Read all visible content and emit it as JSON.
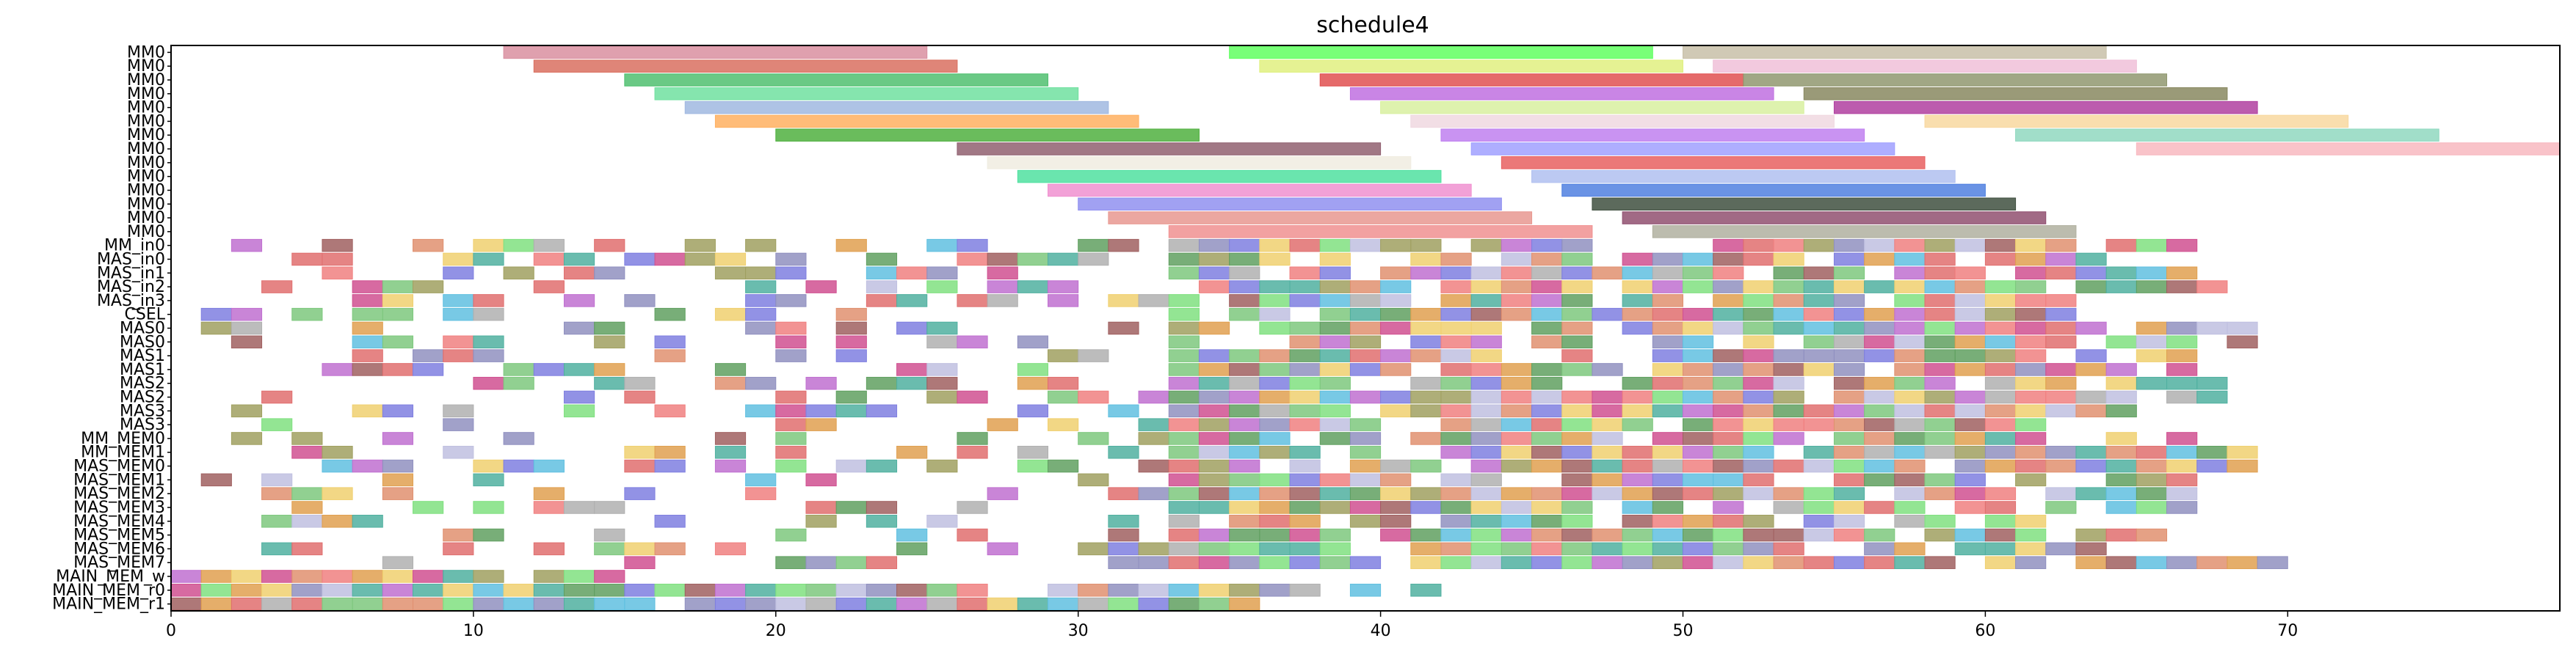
{
  "chart_data": {
    "type": "gantt",
    "title": "schedule4",
    "xlabel": "",
    "ylabel": "",
    "xlim": [
      0,
      79
    ],
    "xticks": [
      0,
      10,
      20,
      30,
      40,
      50,
      60,
      70
    ],
    "grid": false,
    "rows": [
      "MM0",
      "MM0",
      "MM0",
      "MM0",
      "MM0",
      "MM0",
      "MM0",
      "MM0",
      "MM0",
      "MM0",
      "MM0",
      "MM0",
      "MM0",
      "MM0",
      "MM_in0",
      "MAS_in0",
      "MAS_in1",
      "MAS_in2",
      "MAS_in3",
      "CSEL",
      "MAS0",
      "MAS0",
      "MAS1",
      "MAS1",
      "MAS2",
      "MAS2",
      "MAS3",
      "MAS3",
      "MM_MEM0",
      "MM_MEM1",
      "MAS_MEM0",
      "MAS_MEM1",
      "MAS_MEM2",
      "MAS_MEM3",
      "MAS_MEM4",
      "MAS_MEM5",
      "MAS_MEM6",
      "MAS_MEM7",
      "MAIN_MEM_w",
      "MAIN_MEM_r0",
      "MAIN_MEM_r1"
    ],
    "palette": [
      "#e06f6f",
      "#7ec87e",
      "#7f7fe0",
      "#e0a050",
      "#c070d0",
      "#50b0a0",
      "#f08080",
      "#a0a060",
      "#f0d070",
      "#60c0e0",
      "#b0b0b0",
      "#d05090",
      "#80e080",
      "#9090c0",
      "#e09070",
      "#a06060",
      "#60a060",
      "#c0c0e0"
    ],
    "bars": [
      {
        "row": 0,
        "start": 11,
        "end": 25,
        "color": "#d98fa0"
      },
      {
        "row": 0,
        "start": 35,
        "end": 49,
        "color": "#60ff60"
      },
      {
        "row": 0,
        "start": 50,
        "end": 64,
        "color": "#c8c0a8"
      },
      {
        "row": 1,
        "start": 12,
        "end": 26,
        "color": "#d97060"
      },
      {
        "row": 1,
        "start": 36,
        "end": 50,
        "color": "#e0f080"
      },
      {
        "row": 1,
        "start": 51,
        "end": 65,
        "color": "#f0c0d8"
      },
      {
        "row": 2,
        "start": 15,
        "end": 29,
        "color": "#50c070"
      },
      {
        "row": 2,
        "start": 38,
        "end": 52,
        "color": "#e05050"
      },
      {
        "row": 2,
        "start": 52,
        "end": 66,
        "color": "#909870"
      },
      {
        "row": 3,
        "start": 16,
        "end": 30,
        "color": "#70e0a0"
      },
      {
        "row": 3,
        "start": 39,
        "end": 53,
        "color": "#c070e0"
      },
      {
        "row": 3,
        "start": 54,
        "end": 68,
        "color": "#888860"
      },
      {
        "row": 4,
        "start": 17,
        "end": 31,
        "color": "#a0b8e0"
      },
      {
        "row": 4,
        "start": 40,
        "end": 54,
        "color": "#d8f0a0"
      },
      {
        "row": 4,
        "start": 55,
        "end": 69,
        "color": "#b040a0"
      },
      {
        "row": 5,
        "start": 18,
        "end": 32,
        "color": "#ffb060"
      },
      {
        "row": 5,
        "start": 41,
        "end": 55,
        "color": "#f0d8e0"
      },
      {
        "row": 5,
        "start": 58,
        "end": 72,
        "color": "#f8d8a0"
      },
      {
        "row": 6,
        "start": 20,
        "end": 34,
        "color": "#50b040"
      },
      {
        "row": 6,
        "start": 42,
        "end": 56,
        "color": "#c080f0"
      },
      {
        "row": 6,
        "start": 61,
        "end": 75,
        "color": "#90d8c0"
      },
      {
        "row": 7,
        "start": 26,
        "end": 40,
        "color": "#906070"
      },
      {
        "row": 7,
        "start": 43,
        "end": 57,
        "color": "#a0a0ff"
      },
      {
        "row": 7,
        "start": 65,
        "end": 79,
        "color": "#f8b8c0"
      },
      {
        "row": 8,
        "start": 27,
        "end": 41,
        "color": "#f0ece0"
      },
      {
        "row": 8,
        "start": 44,
        "end": 58,
        "color": "#e86060"
      },
      {
        "row": 9,
        "start": 28,
        "end": 42,
        "color": "#50e0a0"
      },
      {
        "row": 9,
        "start": 45,
        "end": 59,
        "color": "#b0c0f0"
      },
      {
        "row": 10,
        "start": 29,
        "end": 43,
        "color": "#f090d0"
      },
      {
        "row": 10,
        "start": 46,
        "end": 60,
        "color": "#5080e0"
      },
      {
        "row": 11,
        "start": 30,
        "end": 44,
        "color": "#9090f0"
      },
      {
        "row": 11,
        "start": 47,
        "end": 61,
        "color": "#405040"
      },
      {
        "row": 12,
        "start": 31,
        "end": 45,
        "color": "#e89890"
      },
      {
        "row": 12,
        "start": 48,
        "end": 62,
        "color": "#905070"
      },
      {
        "row": 13,
        "start": 33,
        "end": 47,
        "color": "#f09090"
      },
      {
        "row": 13,
        "start": 49,
        "end": 63,
        "color": "#b0b0a0"
      }
    ]
  }
}
